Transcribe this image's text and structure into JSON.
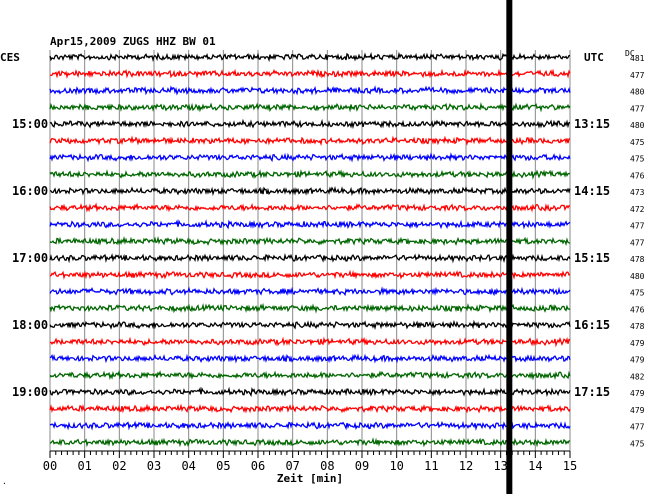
{
  "header": {
    "title": "Apr15,2009   ZUGS HHZ BW 01",
    "left_label": "CES",
    "right_label": "UTC",
    "dc_label": "DC"
  },
  "chart_data": {
    "type": "line",
    "xlabel": "Zeit [min]",
    "xlim": [
      0,
      15
    ],
    "x_ticks": [
      "00",
      "01",
      "02",
      "03",
      "04",
      "05",
      "06",
      "07",
      "08",
      "09",
      "10",
      "11",
      "12",
      "13",
      "14",
      "15"
    ],
    "trace_count": 24,
    "trace_colors": [
      "#000000",
      "#ff0000",
      "#0000ff",
      "#006600"
    ],
    "left_time_labels": [
      {
        "trace": 4,
        "label": "15:00"
      },
      {
        "trace": 8,
        "label": "16:00"
      },
      {
        "trace": 12,
        "label": "17:00"
      },
      {
        "trace": 16,
        "label": "18:00"
      },
      {
        "trace": 20,
        "label": "19:00"
      }
    ],
    "right_time_labels": [
      {
        "trace": 4,
        "label": "13:15"
      },
      {
        "trace": 8,
        "label": "14:15"
      },
      {
        "trace": 12,
        "label": "15:15"
      },
      {
        "trace": 16,
        "label": "16:15"
      },
      {
        "trace": 20,
        "label": "17:15"
      }
    ],
    "dc_values": [
      "481",
      "477",
      "480",
      "477",
      "480",
      "475",
      "475",
      "476",
      "473",
      "472",
      "477",
      "477",
      "478",
      "480",
      "475",
      "476",
      "478",
      "479",
      "479",
      "482",
      "479",
      "479",
      "477",
      "475"
    ],
    "marker_minute": 13.25,
    "grid": true
  },
  "corner_mark": "."
}
